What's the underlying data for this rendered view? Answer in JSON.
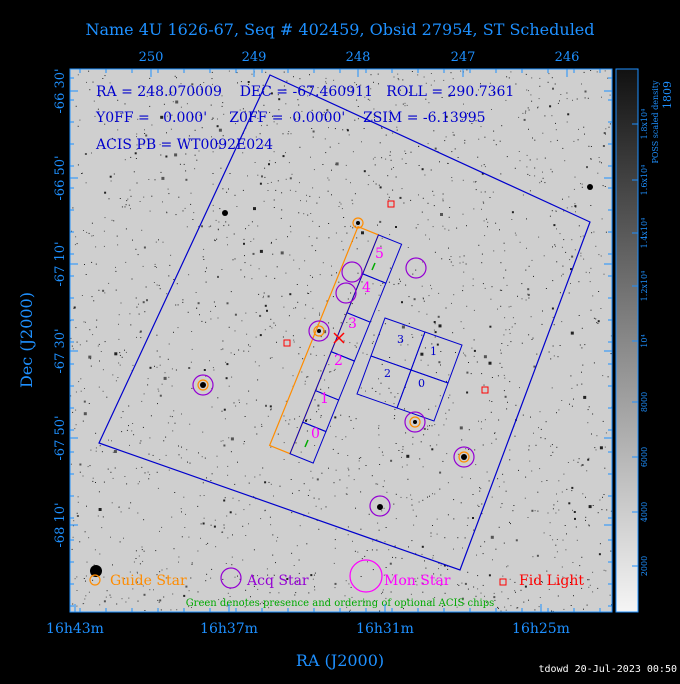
{
  "title": "Name 4U 1626-67, Seq # 402459, Obsid 27954, ST Scheduled",
  "ra_top_ticks": [
    "250",
    "249",
    "248",
    "247",
    "246"
  ],
  "ra_bottom_ticks": [
    "16h43m",
    "16h37m",
    "16h31m",
    "16h25m"
  ],
  "dec_ticks": [
    "-66 30'",
    "-66 50'",
    "-67 10'",
    "-67 30'",
    "-67 50'",
    "-68 10'"
  ],
  "xlabel": "RA (J2000)",
  "ylabel": "Dec (J2000)",
  "info": {
    "line1": "RA = 248.070009    DEC = -67.460911   ROLL = 290.7361",
    "line2": "Y0FF =   0.000'     Z0FF =  0.0000'    ZSIM = -6.13995",
    "line3": "ACIS PB = WT0092E024"
  },
  "colorbar": {
    "label": "POSS scaled density",
    "ticks": [
      "2000",
      "4000",
      "6000",
      "8000",
      "10⁴",
      "1.2x10⁴",
      "1.4x10⁴",
      "1.6x10⁴",
      "1.8x10⁴"
    ],
    "partial": "1809"
  },
  "chips": {
    "acis_s": [
      "0",
      "1",
      "2",
      "3",
      "4",
      "5"
    ],
    "acis_i": [
      "3",
      "1",
      "2",
      "0"
    ]
  },
  "legend": {
    "guide": "Guide Star",
    "acq": "Acq Star",
    "mon": "Mon Star",
    "fid": "Fid Light",
    "note": "Green denotes presence and ordering of optional ACIS chips"
  },
  "footer": "tdowd 20-Jul-2023 00:50",
  "colors": {
    "axis": "#1e90ff",
    "field": "#0000cc",
    "guide": "#ff8c00",
    "acq": "#9400d3",
    "mon": "#ff00ff",
    "fid": "#ff0000",
    "optional": "#00aa00",
    "target": "#ff0000"
  }
}
